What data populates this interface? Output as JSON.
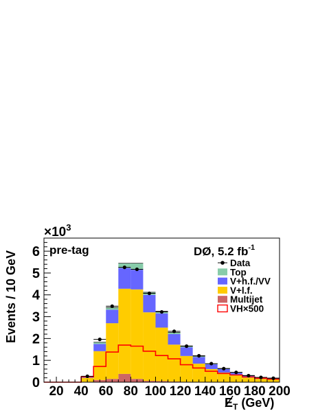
{
  "chart_data": {
    "type": "bar",
    "stacked": true,
    "histogram": true,
    "bin_width": 10,
    "x_edges": [
      10,
      20,
      30,
      40,
      50,
      60,
      70,
      80,
      90,
      100,
      110,
      120,
      130,
      140,
      150,
      160,
      170,
      180,
      190,
      200
    ],
    "bin_centers": [
      15,
      25,
      35,
      45,
      55,
      65,
      75,
      85,
      95,
      105,
      115,
      125,
      135,
      145,
      155,
      165,
      175,
      185,
      195
    ],
    "xlim": [
      10,
      200
    ],
    "ylim": [
      0,
      6.6
    ],
    "x_ticks": [
      20,
      40,
      60,
      80,
      100,
      120,
      140,
      160,
      180,
      200
    ],
    "y_ticks": [
      0,
      1,
      2,
      3,
      4,
      5,
      6
    ],
    "y_multiplier": "×10",
    "y_multiplier_exp": "3",
    "xlabel": "E",
    "xlabel_sub": "T",
    "xlabel_unit": " (GeV)",
    "ylabel": "Events / 10 GeV",
    "annotation_left": "pre-tag",
    "annotation_right": "DØ, 5.2 fb",
    "annotation_right_sup": "-1",
    "series": [
      {
        "name": "Multijet",
        "color": "#cc6666",
        "type": "stack",
        "values": [
          0,
          0,
          0,
          0.02,
          0.1,
          0.15,
          0.38,
          0.15,
          0.06,
          0.05,
          0.03,
          0.02,
          0.01,
          0.01,
          0.01,
          0,
          0,
          0,
          0
        ]
      },
      {
        "name": "V+l.f.",
        "color": "#ffcc00",
        "type": "stack",
        "values": [
          0,
          0,
          0,
          0.18,
          1.32,
          2.55,
          3.9,
          4.1,
          3.14,
          2.45,
          1.69,
          1.18,
          0.84,
          0.59,
          0.43,
          0.31,
          0.21,
          0.15,
          0.13
        ]
      },
      {
        "name": "V+h.f./VV",
        "color": "#6666ff",
        "type": "stack",
        "values": [
          0,
          0,
          0,
          0.04,
          0.33,
          0.62,
          0.95,
          0.9,
          0.8,
          0.65,
          0.48,
          0.4,
          0.3,
          0.22,
          0.16,
          0.12,
          0.08,
          0.06,
          0.05
        ]
      },
      {
        "name": "Top",
        "color": "#88ccaa",
        "type": "stack",
        "values": [
          0,
          0,
          0,
          0.02,
          0.08,
          0.1,
          0.22,
          0.3,
          0.12,
          0.1,
          0.08,
          0.06,
          0.04,
          0.03,
          0.03,
          0.02,
          0.02,
          0.01,
          0.01
        ]
      },
      {
        "name": "VH×500",
        "color": "#ff0000",
        "type": "step",
        "values": [
          0,
          0,
          0,
          0.25,
          0.72,
          1.38,
          1.7,
          1.65,
          1.42,
          1.22,
          1.07,
          0.8,
          0.65,
          0.5,
          0.4,
          0.33,
          0.24,
          0.18,
          0.14
        ]
      },
      {
        "name": "Data",
        "color": "#000000",
        "type": "points",
        "values": [
          0,
          0,
          0,
          0.27,
          1.96,
          3.48,
          5.26,
          5.17,
          4.07,
          3.22,
          2.33,
          1.65,
          1.21,
          0.85,
          0.62,
          0.45,
          0.3,
          0.22,
          0.18
        ]
      }
    ],
    "legend": [
      {
        "label": "Data",
        "symbol": "point"
      },
      {
        "label": "Top",
        "symbol": "fill",
        "color": "#88ccaa"
      },
      {
        "label": "V+h.f./VV",
        "symbol": "fill",
        "color": "#6666ff"
      },
      {
        "label": "V+l.f.",
        "symbol": "fill",
        "color": "#ffcc00"
      },
      {
        "label": "Multijet",
        "symbol": "fill",
        "color": "#cc6666"
      },
      {
        "label": "VH×500",
        "symbol": "line",
        "color": "#ff0000"
      }
    ],
    "legend_position": "top-right"
  }
}
